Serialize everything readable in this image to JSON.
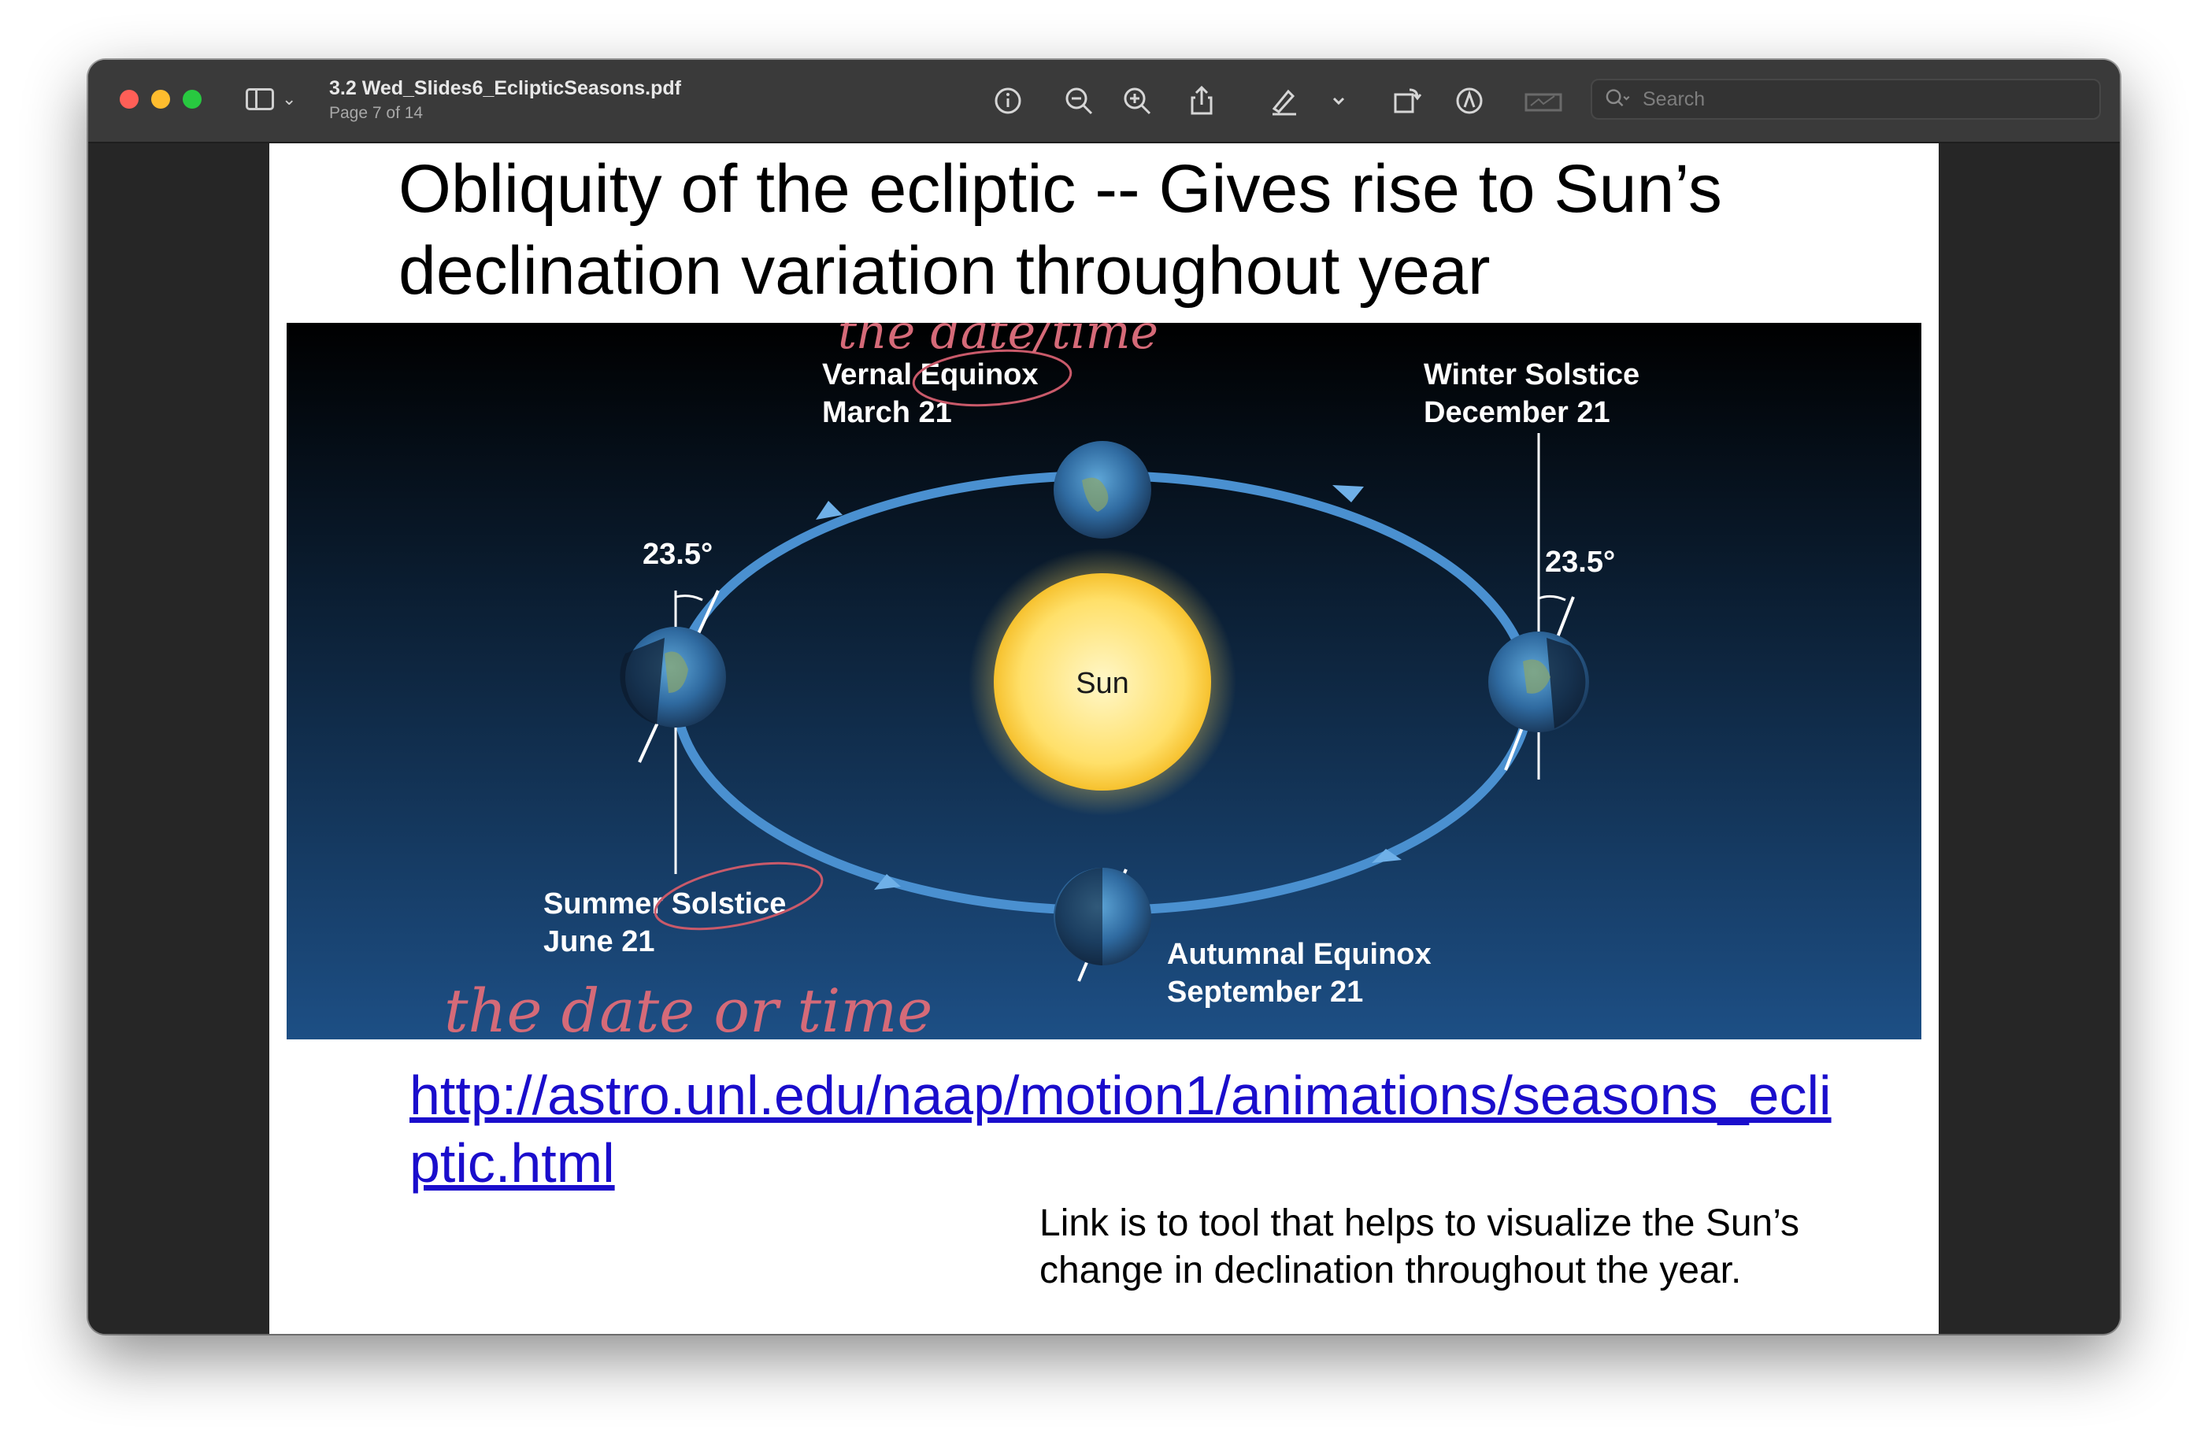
{
  "window": {
    "title": "3.2 Wed_Slides6_EclipticSeasons.pdf",
    "subtitle": "Page 7 of 14"
  },
  "toolbar": {
    "search_placeholder": "Search",
    "icons": [
      "info-icon",
      "zoom-out-icon",
      "zoom-in-icon",
      "share-icon",
      "highlight-pen-icon",
      "chevron-down-icon",
      "rotate-icon",
      "markup-icon",
      "sign-icon"
    ]
  },
  "slide": {
    "title": "Obliquity of the ecliptic -- Gives rise to Sun’s declination variation throughout year",
    "link": "http://astro.unl.edu/naap/motion1/animations/seasons_ecliptic.html",
    "caption": "Link is to tool that helps to visualize the Sun’s change in declination throughout the year."
  },
  "figure": {
    "sun_label": "Sun",
    "vernal": {
      "name": "Vernal Equinox",
      "date": "March 21"
    },
    "winter": {
      "name": "Winter Solstice",
      "date": "December 21"
    },
    "summer": {
      "name": "Summer Solstice",
      "date": "June 21"
    },
    "autumnal": {
      "name": "Autumnal Equinox",
      "date": "September 21"
    },
    "tilt_left": "23.5°",
    "tilt_right": "23.5°",
    "annotation_top": "the date/time",
    "annotation_bottom": "the date or time",
    "colors": {
      "sky_top": "#000000",
      "sky_bottom": "#1d4f85",
      "orbit": "#4a90d0",
      "sun": "#ffe06a",
      "ink": "#c95a6a"
    }
  }
}
